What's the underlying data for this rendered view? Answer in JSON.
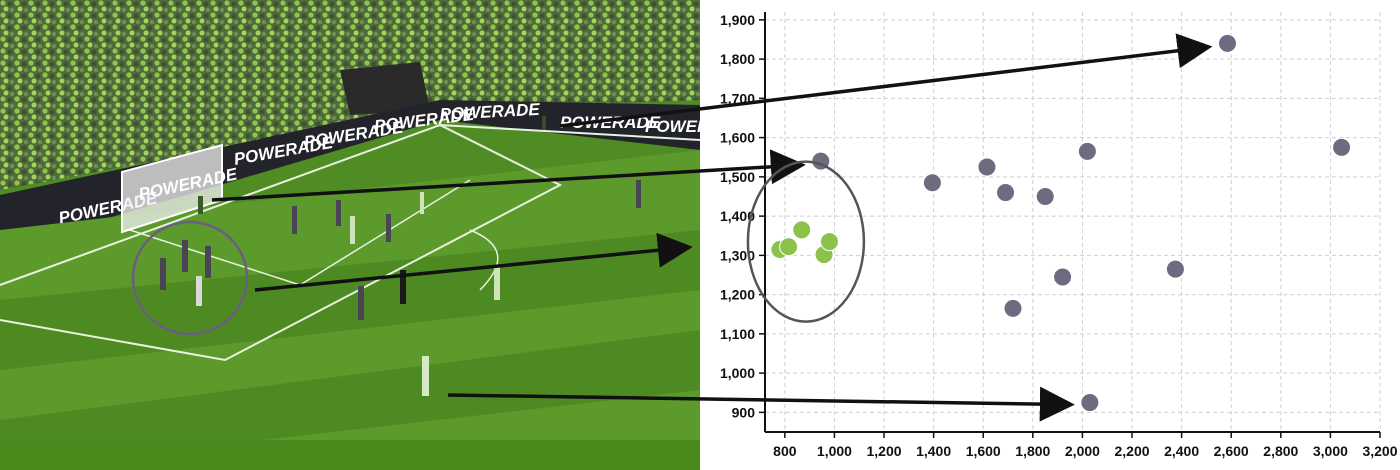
{
  "scene": {
    "banner_text": "POWERADE",
    "goal_text": "POWERADE"
  },
  "colors": {
    "player_green": "#8BC34A",
    "player_gray": "#6E6A80",
    "arrow": "#111111",
    "ring": "#555555",
    "pitch_light": "#5C9A2C",
    "pitch_dark": "#4E8A22"
  },
  "icons": [
    "player-marker",
    "arrow-right-icon",
    "circle-highlight"
  ],
  "chart_data": {
    "type": "scatter",
    "title": "",
    "xlabel": "",
    "ylabel": "",
    "xlim": [
      720,
      3200
    ],
    "ylim": [
      850,
      1920
    ],
    "x_ticks": [
      800,
      1000,
      1200,
      1400,
      1600,
      1800,
      2000,
      2200,
      2400,
      2600,
      2800,
      3000,
      3200
    ],
    "y_ticks": [
      900,
      1000,
      1100,
      1200,
      1300,
      1400,
      1500,
      1600,
      1700,
      1800,
      1900
    ],
    "x_tick_labels": [
      "800",
      "1,000",
      "1,200",
      "1,400",
      "1,600",
      "1,800",
      "2,000",
      "2,200",
      "2,400",
      "2,600",
      "2,800",
      "3,000",
      "3,200"
    ],
    "y_tick_labels": [
      "900",
      "1,000",
      "1,100",
      "1,200",
      "1,300",
      "1,400",
      "1,500",
      "1,600",
      "1,700",
      "1,800",
      "1,900"
    ],
    "grid": true,
    "series": [
      {
        "color": "#8BC34A",
        "points": [
          [
            780,
            1315
          ],
          [
            815,
            1322
          ],
          [
            868,
            1365
          ],
          [
            958,
            1302
          ],
          [
            980,
            1335
          ]
        ]
      },
      {
        "color": "#6E6A80",
        "points": [
          [
            2585,
            1840
          ],
          [
            945,
            1540
          ],
          [
            3045,
            1575
          ],
          [
            2020,
            1565
          ],
          [
            1615,
            1525
          ],
          [
            1395,
            1485
          ],
          [
            1690,
            1460
          ],
          [
            1850,
            1450
          ],
          [
            2375,
            1265
          ],
          [
            1920,
            1245
          ],
          [
            1720,
            1165
          ],
          [
            2030,
            925
          ]
        ]
      }
    ]
  }
}
